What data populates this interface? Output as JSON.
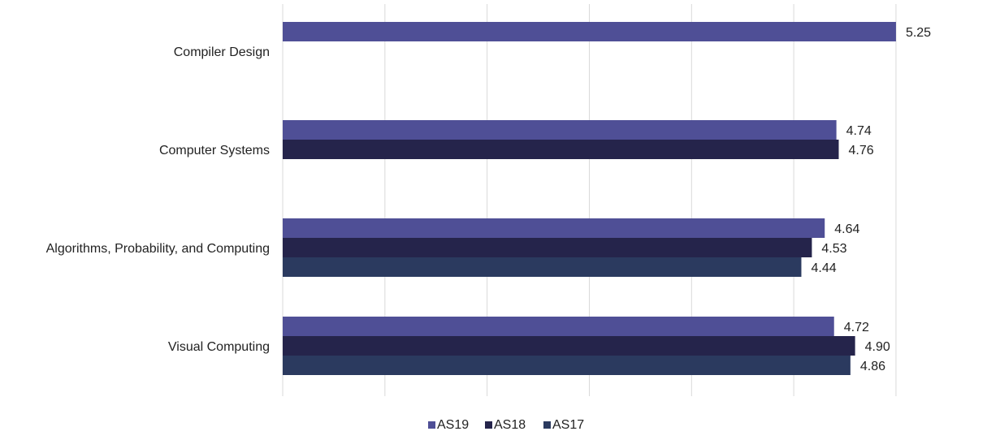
{
  "chart_data": {
    "type": "bar",
    "orientation": "horizontal",
    "categories": [
      "Compiler Design",
      "Computer Systems",
      "Algorithms, Probability, and Computing",
      "Visual Computing"
    ],
    "series": [
      {
        "name": "AS19",
        "color": "#4f4f96",
        "values": [
          5.25,
          4.74,
          4.64,
          4.72
        ],
        "labels": [
          "5.25",
          "4.74",
          "4.64",
          "4.72"
        ]
      },
      {
        "name": "AS18",
        "color": "#25244b",
        "values": [
          null,
          4.76,
          4.53,
          4.9
        ],
        "labels": [
          "",
          "4.76",
          "4.53",
          "4.90"
        ]
      },
      {
        "name": "AS17",
        "color": "#2b3a5f",
        "values": [
          null,
          null,
          4.44,
          4.86
        ],
        "labels": [
          "",
          "",
          "4.44",
          "4.86"
        ]
      }
    ],
    "xlim": [
      0,
      6
    ],
    "grid": true,
    "legend_position": "bottom",
    "title": "",
    "xlabel": "",
    "ylabel": ""
  }
}
